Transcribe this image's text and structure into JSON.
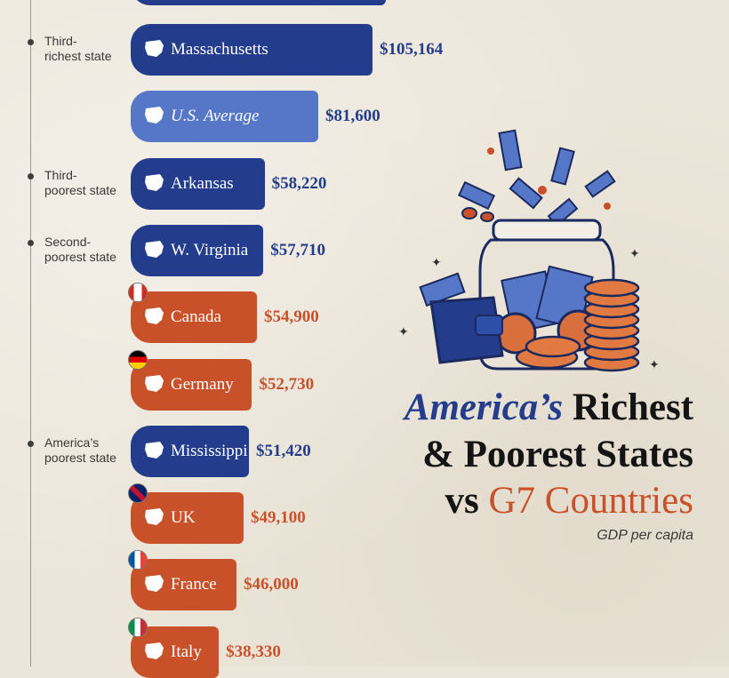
{
  "title": {
    "line1_highlight": "America’s",
    "line1_rest": "Richest",
    "line2": "& Poorest States",
    "line3_prefix": "vs",
    "line3_highlight": "G7 Countries"
  },
  "subtitle": "GDP per capita",
  "annotations": [
    {
      "label": "Third-\nrichest state",
      "bar": "Massachusetts"
    },
    {
      "label": "Third-\npoorest state",
      "bar": "Arkansas"
    },
    {
      "label": "Second-\npoorest state",
      "bar": "W. Virginia"
    },
    {
      "label": "America’s\npoorest state",
      "bar": "Mississippi"
    }
  ],
  "colors": {
    "state": "#233d8c",
    "us_average": "#5676c8",
    "country": "#c9512a",
    "background": "#ece6da"
  },
  "chart_data": {
    "type": "bar",
    "orientation": "horizontal",
    "title": "America’s Richest & Poorest States vs G7 Countries",
    "subtitle": "GDP per capita",
    "categories": [
      "Massachusetts",
      "U.S. Average",
      "Arkansas",
      "W. Virginia",
      "Canada",
      "Germany",
      "Mississippi",
      "UK",
      "France",
      "Italy"
    ],
    "values": [
      105164,
      81600,
      58220,
      57710,
      54900,
      52730,
      51420,
      49100,
      46000,
      38330
    ],
    "value_labels": [
      "$105,164",
      "$81,600",
      "$58,220",
      "$57,710",
      "$54,900",
      "$52,730",
      "$51,420",
      "$49,100",
      "$46,000",
      "$38,330"
    ],
    "groups": [
      "state",
      "us_average",
      "state",
      "state",
      "country",
      "country",
      "state",
      "country",
      "country",
      "country"
    ],
    "icons": [
      "massachusetts-shape-icon",
      "usa-map-icon",
      "arkansas-shape-icon",
      "west-virginia-shape-icon",
      "canada-map-icon",
      "germany-map-icon",
      "mississippi-shape-icon",
      "uk-map-icon",
      "france-map-icon",
      "italy-map-icon"
    ],
    "flags": [
      null,
      null,
      null,
      null,
      "canada-flag-icon",
      "germany-flag-icon",
      null,
      "uk-flag-icon",
      "france-flag-icon",
      "italy-flag-icon"
    ],
    "grid": false,
    "legend": "none"
  }
}
